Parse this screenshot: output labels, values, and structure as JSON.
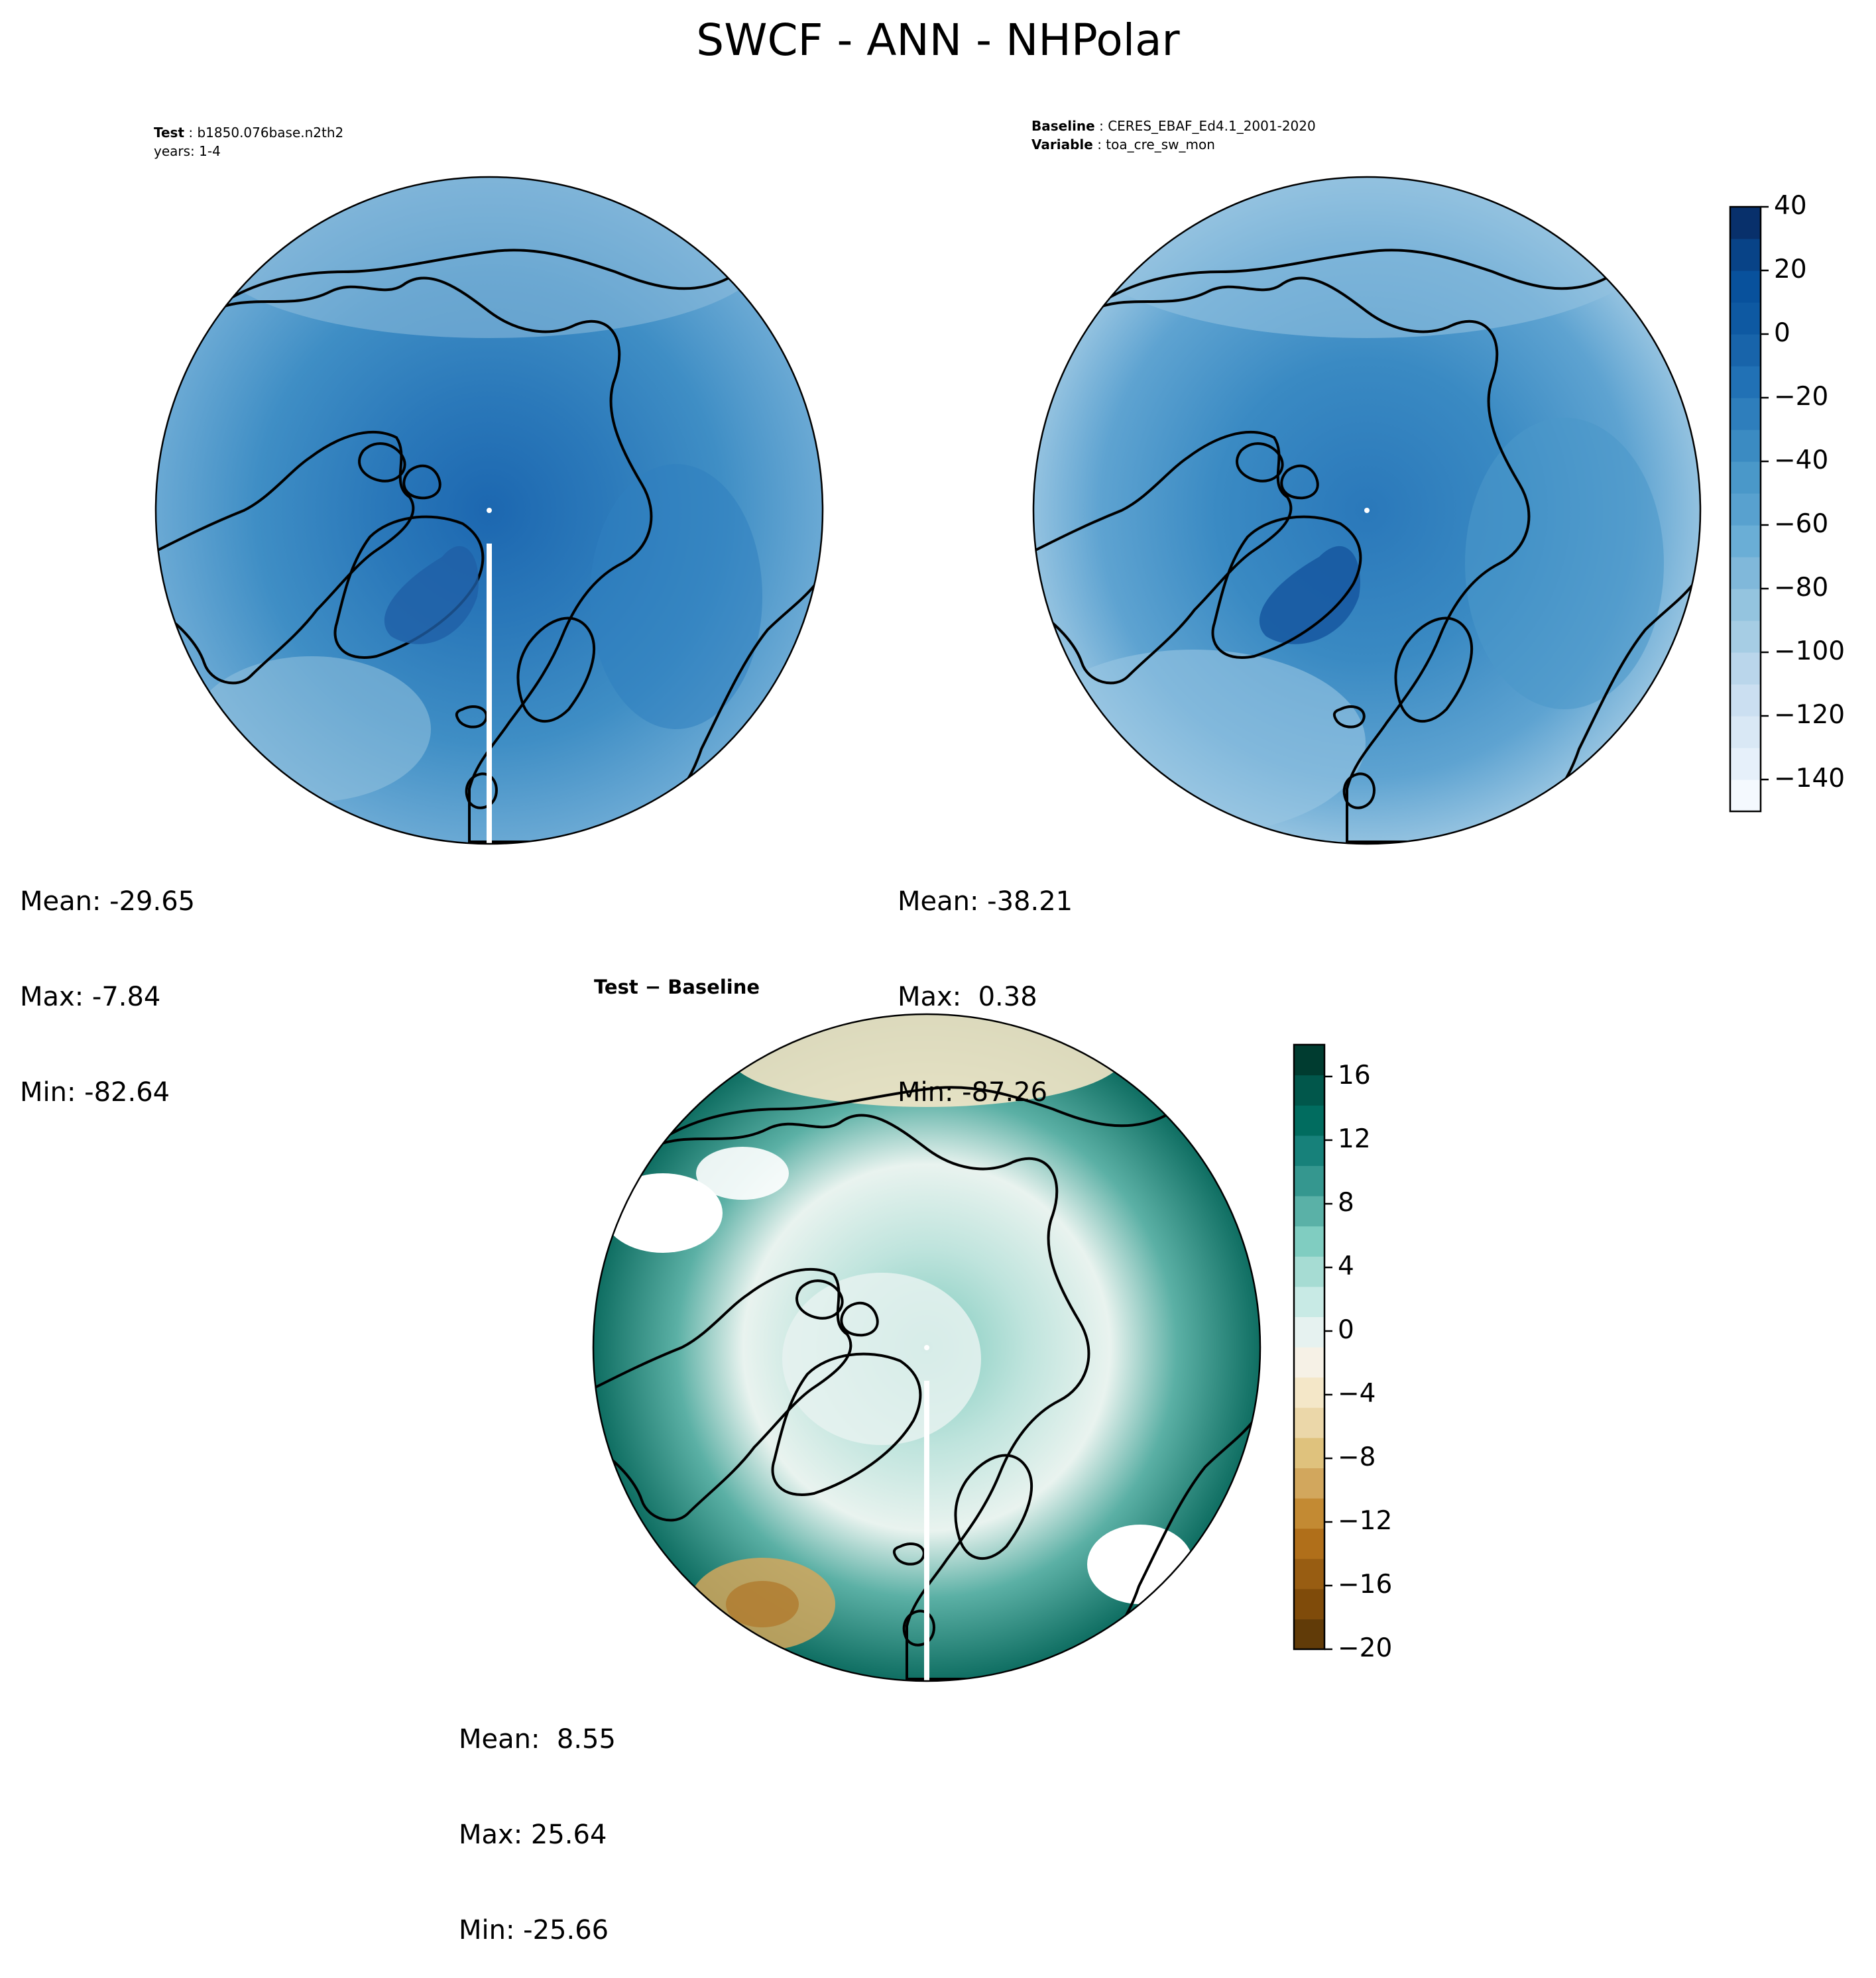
{
  "figure": {
    "title": "SWCF - ANN - NHPolar"
  },
  "panels": {
    "test": {
      "label_key": "Test",
      "label_value": "b1850.076base.n2th2",
      "years": "years: 1-4",
      "stats": {
        "mean": "Mean: -29.65",
        "max": "Max: -7.84",
        "min": "Min: -82.64"
      }
    },
    "baseline": {
      "label_key": "Baseline",
      "label_value": "CERES_EBAF_Ed4.1_2001-2020",
      "variable_key": "Variable",
      "variable_value": "toa_cre_sw_mon",
      "stats": {
        "mean": "Mean: -38.21",
        "max": "Max:  0.38",
        "min": "Min: -87.26"
      }
    },
    "diff": {
      "title": "Test − Baseline",
      "stats": {
        "mean": "Mean:  8.55",
        "max": "Max: 25.64",
        "min": "Min: -25.66"
      }
    }
  },
  "colorbars": {
    "main": {
      "range": [
        -150,
        40
      ],
      "ticks": [
        "40",
        "20",
        "0",
        "−20",
        "−40",
        "−60",
        "−80",
        "−100",
        "−120",
        "−140"
      ],
      "tick_values": [
        40,
        20,
        0,
        -20,
        -40,
        -60,
        -80,
        -100,
        -120,
        -140
      ],
      "colors": [
        "#f4f9fe",
        "#e6f0fa",
        "#d9e8f5",
        "#cbdff1",
        "#bad6eb",
        "#a6cde4",
        "#94c4df",
        "#80b8da",
        "#6aaed6",
        "#58a1cf",
        "#4a98c9",
        "#3b8bc2",
        "#2e7ebc",
        "#2171b5",
        "#1864aa",
        "#0e59a2",
        "#08519c",
        "#084387",
        "#08306b"
      ]
    },
    "diff": {
      "range": [
        -20,
        18
      ],
      "ticks": [
        "16",
        "12",
        "8",
        "4",
        "0",
        "−4",
        "−8",
        "−12",
        "−16",
        "−20"
      ],
      "tick_values": [
        16,
        12,
        8,
        4,
        0,
        -4,
        -8,
        -12,
        -16,
        -20
      ],
      "colors": [
        "#613b08",
        "#7f4b0a",
        "#985d12",
        "#b06f1a",
        "#c38a33",
        "#d2a75d",
        "#dfc27d",
        "#ebd7a9",
        "#f4e7c8",
        "#f6f1e6",
        "#e6f2f0",
        "#c8eae5",
        "#a6dcd3",
        "#80cdc1",
        "#5ab1a7",
        "#35978f",
        "#17817a",
        "#016c5f",
        "#01574b",
        "#003c30"
      ]
    }
  }
}
